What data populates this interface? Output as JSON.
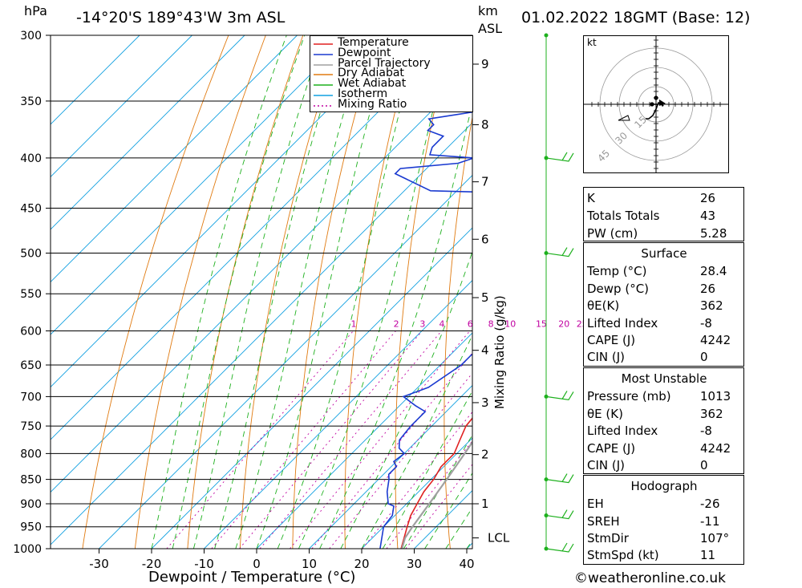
{
  "header": {
    "hpa_label": "hPa",
    "location": "-14°20'S  189°43'W  3m  ASL",
    "km_label": "km",
    "asl_label": "ASL",
    "datetime": "01.02.2022  18GMT  (Base: 12)"
  },
  "chart_data": {
    "type": "line",
    "title": "",
    "xlabel": "Dewpoint / Temperature (°C)",
    "ylabel": "hPa",
    "x_ticks": [
      -30,
      -20,
      -10,
      0,
      10,
      20,
      30,
      40
    ],
    "pressure_levels": [
      300,
      350,
      400,
      450,
      500,
      550,
      600,
      650,
      700,
      750,
      800,
      850,
      900,
      950,
      1000
    ],
    "km_ticks": [
      {
        "km": "1",
        "p": 900
      },
      {
        "km": "2",
        "p": 802
      },
      {
        "km": "3",
        "p": 710
      },
      {
        "km": "4",
        "p": 628
      },
      {
        "km": "5",
        "p": 555
      },
      {
        "km": "6",
        "p": 484
      },
      {
        "km": "7",
        "p": 423
      },
      {
        "km": "8",
        "p": 370
      },
      {
        "km": "9",
        "p": 321
      }
    ],
    "lcl": {
      "label": "LCL",
      "p": 975
    },
    "mixing_ratio_axis_label": "Mixing Ratio (g/kg)",
    "mixing_ratio_labels": [
      "1",
      "2",
      "3",
      "4",
      "6",
      "8",
      "10",
      "15",
      "20",
      "25"
    ],
    "mixing_ratio_values": [
      1,
      2,
      3,
      4,
      6,
      8,
      10,
      15,
      20,
      25
    ],
    "legend": [
      {
        "name": "Temperature",
        "color": "#e02020"
      },
      {
        "name": "Dewpoint",
        "color": "#1a3ad0"
      },
      {
        "name": "Parcel Trajectory",
        "color": "#a0a0a0"
      },
      {
        "name": "Dry Adiabat",
        "color": "#e07a10"
      },
      {
        "name": "Wet Adiabat",
        "color": "#1db01d"
      },
      {
        "name": "Isotherm",
        "color": "#10a0e0"
      },
      {
        "name": "Mixing Ratio",
        "color": "#c000a0"
      }
    ],
    "series": [
      {
        "name": "Temperature",
        "points": [
          [
            1013,
            28.4
          ],
          [
            1000,
            27.5
          ],
          [
            950,
            24.5
          ],
          [
            925,
            23
          ],
          [
            900,
            22
          ],
          [
            875,
            21
          ],
          [
            850,
            20.5
          ],
          [
            825,
            19.5
          ],
          [
            800,
            19.5
          ],
          [
            775,
            18
          ],
          [
            750,
            16.5
          ],
          [
            725,
            16
          ],
          [
            700,
            15
          ],
          [
            675,
            14
          ],
          [
            650,
            12
          ],
          [
            625,
            10.5
          ],
          [
            600,
            9
          ],
          [
            575,
            7.5
          ],
          [
            550,
            6
          ],
          [
            525,
            4
          ],
          [
            500,
            2
          ],
          [
            475,
            0
          ],
          [
            450,
            -3.5
          ],
          [
            435,
            -5
          ],
          [
            425,
            -7
          ],
          [
            415,
            -8
          ],
          [
            400,
            -11
          ],
          [
            390,
            -13
          ],
          [
            380,
            -15
          ],
          [
            370,
            -17
          ],
          [
            360,
            -19.5
          ],
          [
            350,
            -23
          ],
          [
            340,
            -25.5
          ],
          [
            330,
            -28
          ],
          [
            320,
            -31
          ],
          [
            310,
            -34
          ],
          [
            300,
            -36
          ]
        ]
      },
      {
        "name": "Dewpoint",
        "points": [
          [
            1013,
            26
          ],
          [
            1000,
            23.5
          ],
          [
            950,
            20
          ],
          [
            925,
            19.5
          ],
          [
            905,
            18
          ],
          [
            900,
            16.5
          ],
          [
            875,
            14
          ],
          [
            850,
            12
          ],
          [
            840,
            11
          ],
          [
            825,
            11
          ],
          [
            815,
            9.5
          ],
          [
            800,
            10
          ],
          [
            790,
            8
          ],
          [
            775,
            6.5
          ],
          [
            750,
            6
          ],
          [
            725,
            6
          ],
          [
            715,
            3
          ],
          [
            700,
            -1
          ],
          [
            685,
            2
          ],
          [
            650,
            4
          ],
          [
            635,
            4
          ],
          [
            625,
            5
          ],
          [
            600,
            5
          ],
          [
            575,
            4.5
          ],
          [
            550,
            3.5
          ],
          [
            525,
            1
          ],
          [
            500,
            -2
          ],
          [
            475,
            -3
          ],
          [
            465,
            -5
          ],
          [
            450,
            -8
          ],
          [
            440,
            -11
          ],
          [
            437,
            -15
          ],
          [
            435,
            -13
          ],
          [
            432,
            -35
          ],
          [
            420,
            -42
          ],
          [
            415,
            -45
          ],
          [
            410,
            -45
          ],
          [
            405,
            -35
          ],
          [
            400,
            -33
          ],
          [
            397,
            -42
          ],
          [
            390,
            -43
          ],
          [
            380,
            -43
          ],
          [
            375,
            -47
          ],
          [
            370,
            -47
          ],
          [
            365,
            -49
          ],
          [
            360,
            -43
          ],
          [
            355,
            -37
          ],
          [
            350,
            -41
          ],
          [
            345,
            -45
          ],
          [
            330,
            -45
          ],
          [
            320,
            -44
          ],
          [
            310,
            -39
          ],
          [
            300,
            -42
          ]
        ]
      },
      {
        "name": "Parcel Trajectory",
        "points": [
          [
            1013,
            28.4
          ],
          [
            975,
            26.2
          ],
          [
            950,
            25.5
          ],
          [
            900,
            24.3
          ],
          [
            850,
            23
          ],
          [
            800,
            21.5
          ],
          [
            750,
            19.8
          ],
          [
            700,
            17.8
          ],
          [
            650,
            15.5
          ],
          [
            600,
            12.8
          ],
          [
            550,
            9.8
          ],
          [
            500,
            6.2
          ],
          [
            450,
            2
          ],
          [
            400,
            -3.2
          ],
          [
            350,
            -9.5
          ],
          [
            300,
            -17.5
          ]
        ]
      }
    ],
    "wind_barbs": [
      {
        "p": 1000,
        "barb": "long"
      },
      {
        "p": 925,
        "barb": "long"
      },
      {
        "p": 850,
        "barb": "long"
      },
      {
        "p": 700,
        "barb": "long"
      },
      {
        "p": 500,
        "barb": "long"
      },
      {
        "p": 400,
        "barb": "long"
      },
      {
        "p": 300,
        "barb": "calm"
      }
    ]
  },
  "hodograph": {
    "unit_label": "kt",
    "ring_labels": [
      "15",
      "30",
      "45"
    ]
  },
  "indices": {
    "k_label": "K",
    "k_value": "26",
    "tt_label": "Totals Totals",
    "tt_value": "43",
    "pw_label": "PW (cm)",
    "pw_value": "5.28"
  },
  "surface": {
    "title": "Surface",
    "temp_label": "Temp (°C)",
    "temp_value": "28.4",
    "dewp_label": "Dewp (°C)",
    "dewp_value": "26",
    "theta_label": "θE(K)",
    "theta_value": "362",
    "li_label": "Lifted Index",
    "li_value": "-8",
    "cape_label": "CAPE (J)",
    "cape_value": "4242",
    "cin_label": "CIN (J)",
    "cin_value": "0"
  },
  "most_unstable": {
    "title": "Most Unstable",
    "pressure_label": "Pressure (mb)",
    "pressure_value": "1013",
    "theta_label": "θE (K)",
    "theta_value": "362",
    "li_label": "Lifted Index",
    "li_value": "-8",
    "cape_label": "CAPE (J)",
    "cape_value": "4242",
    "cin_label": "CIN (J)",
    "cin_value": "0"
  },
  "hodograph_params": {
    "title": "Hodograph",
    "eh_label": "EH",
    "eh_value": "-26",
    "sreh_label": "SREH",
    "sreh_value": "-11",
    "stmdir_label": "StmDir",
    "stmdir_value": "107°",
    "stmspd_label": "StmSpd (kt)",
    "stmspd_value": "11"
  },
  "footer": {
    "copyright": "©weatheronline.co.uk"
  }
}
